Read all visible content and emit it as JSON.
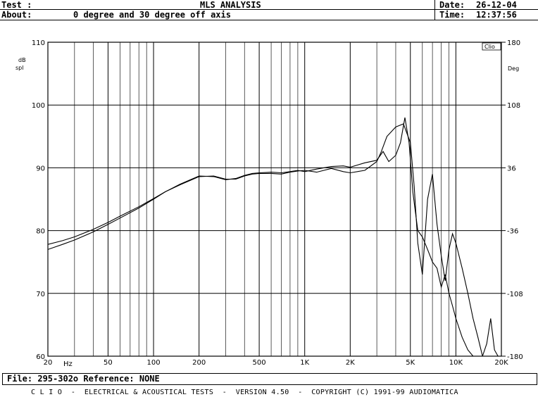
{
  "header": {
    "test_label": "Test :",
    "title": "MLS ANALYSIS",
    "date_label": "Date:",
    "date_value": "26-12-04",
    "about_label": "About:",
    "about_value": "0 degree and 30 degree off axis",
    "time_label": "Time:",
    "time_value": "12:37:56"
  },
  "file_bar": "File: 295-302o Reference: NONE",
  "footer": "C L I O  -  ELECTRICAL & ACOUSTICAL TESTS  -  VERSION 4.50  -  COPYRIGHT (C) 1991-99 AUDIOMATICA",
  "chart_data": {
    "type": "line",
    "brand": "Clio",
    "x_scale": "log",
    "xlim": [
      20,
      20000
    ],
    "x_ticks": [
      {
        "value": 20,
        "label": "20"
      },
      {
        "value": 50,
        "label": "50"
      },
      {
        "value": 100,
        "label": "100"
      },
      {
        "value": 200,
        "label": "200"
      },
      {
        "value": 500,
        "label": "500"
      },
      {
        "value": 1000,
        "label": "1K"
      },
      {
        "value": 2000,
        "label": "2K"
      },
      {
        "value": 5000,
        "label": "5K"
      },
      {
        "value": 10000,
        "label": "10K"
      },
      {
        "value": 20000,
        "label": "20K"
      }
    ],
    "x_unit_label": "Hz",
    "ylim": [
      60,
      110
    ],
    "y_ticks": [
      60,
      70,
      80,
      90,
      100,
      110
    ],
    "ylabel_left": [
      "dB",
      "spl"
    ],
    "right_axis": {
      "label": "Deg",
      "ticks": [
        "180",
        "108",
        "36",
        "-36",
        "-108",
        "-180"
      ]
    },
    "grid": true,
    "colors": {
      "line": "#000000",
      "grid": "#000000",
      "background": "#ffffff"
    },
    "series": [
      {
        "x": [
          20,
          25,
          30,
          40,
          50,
          60,
          80,
          100,
          120,
          150,
          200,
          250,
          300,
          350,
          400,
          450,
          500,
          600,
          700,
          800,
          900,
          1000,
          1200,
          1500,
          1800,
          2000,
          2500,
          3000,
          3300,
          3600,
          4000,
          4300,
          4600,
          4900,
          5200,
          5600,
          6000,
          6500,
          7000,
          7500,
          8000,
          8500,
          9000,
          9500,
          10000,
          11000,
          12000,
          13000,
          14000,
          15000,
          16000,
          17000,
          18000,
          19000,
          20000
        ],
        "y": [
          77.0,
          77.8,
          78.5,
          79.8,
          81.0,
          82.0,
          83.6,
          85.0,
          86.2,
          87.4,
          88.7,
          88.6,
          88.1,
          88.3,
          88.8,
          89.1,
          89.2,
          89.3,
          89.2,
          89.4,
          89.6,
          89.4,
          89.8,
          90.2,
          90.3,
          90.1,
          90.8,
          91.2,
          92.6,
          91.0,
          92.0,
          94.0,
          98.0,
          94.0,
          86.0,
          80.0,
          79.0,
          77.0,
          75.0,
          74.0,
          71.0,
          73.0,
          70.0,
          68.0,
          66.0,
          63.0,
          61.0,
          60.0,
          59.0,
          60.0,
          62.0,
          66.0,
          61.0,
          60.0,
          60.0
        ]
      },
      {
        "x": [
          20,
          25,
          30,
          40,
          50,
          60,
          80,
          100,
          120,
          150,
          200,
          250,
          300,
          350,
          400,
          450,
          500,
          600,
          700,
          800,
          900,
          1000,
          1200,
          1500,
          1800,
          2000,
          2500,
          3000,
          3200,
          3500,
          4000,
          4500,
          5000,
          5300,
          5600,
          6000,
          6500,
          7000,
          7500,
          8000,
          8500,
          9000,
          9500,
          10000,
          11000,
          12000,
          13000,
          14000,
          15000,
          16000,
          17000,
          18000,
          19000,
          20000
        ],
        "y": [
          77.8,
          78.4,
          79.0,
          80.2,
          81.3,
          82.3,
          83.8,
          85.1,
          86.2,
          87.3,
          88.6,
          88.7,
          88.2,
          88.2,
          88.7,
          89.0,
          89.1,
          89.1,
          89.0,
          89.3,
          89.5,
          89.6,
          89.3,
          89.9,
          89.4,
          89.2,
          89.6,
          91.0,
          92.5,
          95.0,
          96.5,
          97.0,
          94.0,
          87.0,
          78.0,
          73.0,
          85.0,
          89.0,
          81.0,
          76.0,
          72.0,
          77.0,
          79.5,
          78.0,
          74.0,
          70.0,
          66.0,
          63.0,
          60.0,
          59.0,
          58.0,
          57.0,
          57.0,
          57.0
        ]
      }
    ]
  }
}
